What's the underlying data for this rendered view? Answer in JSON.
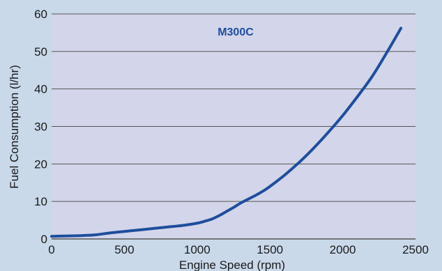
{
  "chart_data": {
    "type": "line",
    "title": "",
    "xlabel": "Engine Speed (rpm)",
    "ylabel": "Fuel Consumption (l/hr)",
    "xlim": [
      0,
      2500
    ],
    "ylim": [
      0,
      60
    ],
    "x_ticks": [
      0,
      500,
      1000,
      1500,
      2000,
      2500
    ],
    "y_ticks": [
      0,
      10,
      20,
      30,
      40,
      50,
      60
    ],
    "grid": "horizontal",
    "annotation": "M300C",
    "colors": {
      "background": "#c9d9ea",
      "plot_area": "#d3d5ea",
      "line": "#1e4e9c",
      "grid": "#555555",
      "annotation": "#1e4e9c"
    },
    "series": [
      {
        "name": "M300C",
        "x": [
          0,
          100,
          200,
          300,
          400,
          500,
          600,
          700,
          800,
          900,
          1000,
          1050,
          1100,
          1150,
          1200,
          1250,
          1300,
          1350,
          1400,
          1450,
          1500,
          1600,
          1700,
          1800,
          1900,
          2000,
          2100,
          2200,
          2300,
          2400
        ],
        "y": [
          0.7,
          0.8,
          0.9,
          1.1,
          1.6,
          2.0,
          2.4,
          2.8,
          3.2,
          3.6,
          4.2,
          4.7,
          5.3,
          6.2,
          7.3,
          8.4,
          9.6,
          10.6,
          11.6,
          12.7,
          14.0,
          17.0,
          20.4,
          24.2,
          28.4,
          32.9,
          37.9,
          43.2,
          49.5,
          56.2
        ]
      }
    ]
  }
}
